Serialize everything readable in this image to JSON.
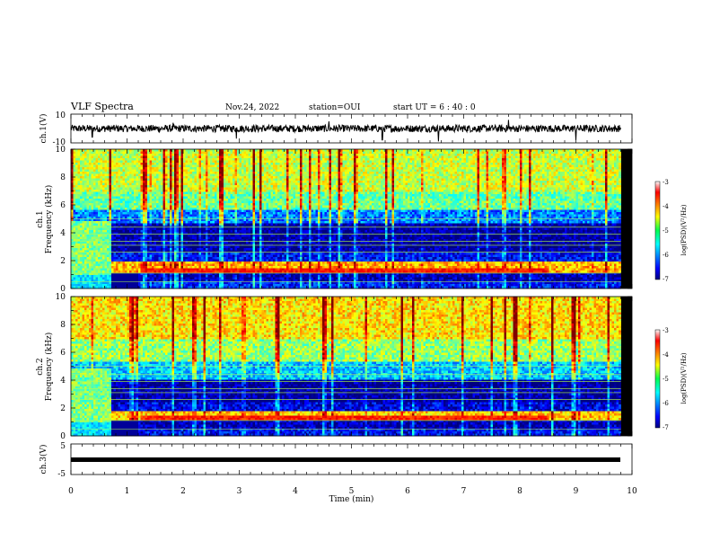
{
  "header": {
    "title": "VLF Spectra",
    "date": "Nov.24, 2022",
    "station": "station=OUI",
    "start": "start  UT =   6  : 40 : 0"
  },
  "chart_data": [
    {
      "type": "line",
      "name": "ch1-waveform",
      "ylabel": "ch.1(V)",
      "ylim": [
        -10,
        10
      ],
      "yticks": [
        "10",
        "-10"
      ],
      "x_unit": "min",
      "xlim": [
        0,
        10
      ],
      "data_extent": [
        0,
        9.8
      ],
      "baseline": 0,
      "amplitude": 2.5,
      "spikes": [
        {
          "x": 0.38,
          "y": -6
        },
        {
          "x": 1.82,
          "y": 4
        },
        {
          "x": 2.95,
          "y": -7
        },
        {
          "x": 4.6,
          "y": 5
        },
        {
          "x": 5.55,
          "y": -8
        },
        {
          "x": 6.55,
          "y": -9
        },
        {
          "x": 7.8,
          "y": 6
        },
        {
          "x": 9.0,
          "y": -8
        }
      ]
    },
    {
      "type": "heatmap",
      "name": "ch1-spectrogram",
      "ylabel_line1": "ch.1",
      "ylabel_line2": "Frequency  (kHz)",
      "ylim": [
        0,
        10
      ],
      "yticks": [
        "0",
        "2",
        "4",
        "6",
        "8",
        "10"
      ],
      "xlim": [
        0,
        10
      ],
      "data_extent": [
        0,
        9.8
      ],
      "colorbar": {
        "label": "log(PSD)(V²/Hz)",
        "ticks": [
          "-3",
          "-4",
          "-5",
          "-6",
          "-7"
        ],
        "range": [
          -7,
          -3
        ]
      },
      "bands": [
        {
          "f0": 0,
          "f1": 0.5,
          "v": -6.4
        },
        {
          "f0": 0.5,
          "f1": 1.1,
          "v": -6.8
        },
        {
          "f0": 1.1,
          "f1": 1.9,
          "v": -4.2
        },
        {
          "f0": 1.9,
          "f1": 2.6,
          "v": -6.5
        },
        {
          "f0": 2.6,
          "f1": 4.6,
          "v": -6.9
        },
        {
          "f0": 4.6,
          "f1": 5.6,
          "v": -6.0
        },
        {
          "f0": 5.6,
          "f1": 7.0,
          "v": -5.1
        },
        {
          "f0": 7.0,
          "f1": 10,
          "v": -4.7
        }
      ]
    },
    {
      "type": "heatmap",
      "name": "ch2-spectrogram",
      "ylabel_line1": "ch.2",
      "ylabel_line2": "Frequency  (kHz)",
      "ylim": [
        0,
        10
      ],
      "yticks": [
        "0",
        "2",
        "4",
        "6",
        "8",
        "10"
      ],
      "xlim": [
        0,
        10
      ],
      "data_extent": [
        0,
        9.8
      ],
      "colorbar": {
        "label": "log(PSD)(V²/Hz)",
        "ticks": [
          "-3",
          "-4",
          "-5",
          "-6",
          "-7"
        ],
        "range": [
          -7,
          -3
        ]
      },
      "bands": [
        {
          "f0": 0,
          "f1": 0.5,
          "v": -6.5
        },
        {
          "f0": 0.5,
          "f1": 1.1,
          "v": -6.8
        },
        {
          "f0": 1.1,
          "f1": 1.7,
          "v": -4.3
        },
        {
          "f0": 1.7,
          "f1": 2.5,
          "v": -6.6
        },
        {
          "f0": 2.5,
          "f1": 4.0,
          "v": -6.9
        },
        {
          "f0": 4.0,
          "f1": 5.4,
          "v": -5.7
        },
        {
          "f0": 5.4,
          "f1": 7.0,
          "v": -4.9
        },
        {
          "f0": 7.0,
          "f1": 10,
          "v": -4.4
        }
      ]
    },
    {
      "type": "line",
      "name": "ch3-waveform",
      "ylabel": "ch.3(V)",
      "ylim": [
        -5,
        5
      ],
      "yticks": [
        "5",
        "-5"
      ],
      "xlim": [
        0,
        10
      ],
      "data_extent": [
        0,
        9.8
      ],
      "baseline": 0
    }
  ],
  "x_axis": {
    "label": "Time  (min)",
    "ticks": [
      "0",
      "1",
      "2",
      "3",
      "4",
      "5",
      "6",
      "7",
      "8",
      "9",
      "10"
    ]
  }
}
